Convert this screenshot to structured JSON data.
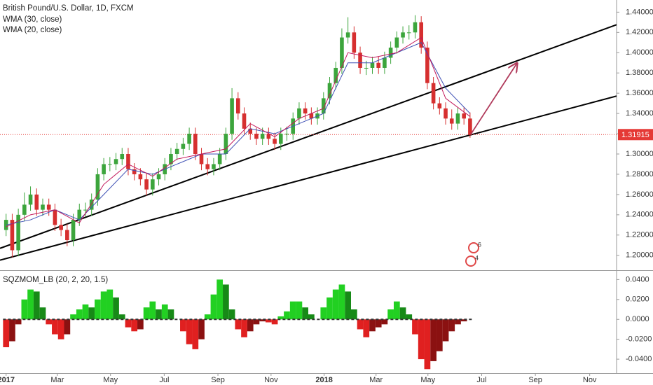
{
  "chart_data": [
    {
      "type": "candlestick",
      "title": "British Pound/U.S. Dollar, 1D, FXCM",
      "xlim": [
        -1,
        100
      ],
      "xticks": [
        {
          "value": 0,
          "label": "2017"
        },
        {
          "value": 8.4,
          "label": "Mar"
        },
        {
          "value": 17.1,
          "label": "May"
        },
        {
          "value": 25.9,
          "label": "Jul"
        },
        {
          "value": 34.7,
          "label": "Sep"
        },
        {
          "value": 43.4,
          "label": "Nov"
        },
        {
          "value": 52.1,
          "label": "2018"
        },
        {
          "value": 60.6,
          "label": "Mar"
        },
        {
          "value": 69.1,
          "label": "May"
        },
        {
          "value": 77.9,
          "label": "Jul"
        },
        {
          "value": 86.7,
          "label": "Sep"
        },
        {
          "value": 95.6,
          "label": "Nov"
        }
      ],
      "ylim": [
        1.186,
        1.452
      ],
      "yticks": [
        {
          "value": 1.2,
          "label": "1.20000"
        },
        {
          "value": 1.22,
          "label": "1.22000"
        },
        {
          "value": 1.24,
          "label": "1.24000"
        },
        {
          "value": 1.26,
          "label": "1.26000"
        },
        {
          "value": 1.28,
          "label": "1.28000"
        },
        {
          "value": 1.3,
          "label": "1.30000"
        },
        {
          "value": 1.32,
          "label": "1.32000"
        },
        {
          "value": 1.34,
          "label": "1.34000"
        },
        {
          "value": 1.36,
          "label": "1.36000"
        },
        {
          "value": 1.38,
          "label": "1.38000"
        },
        {
          "value": 1.4,
          "label": "1.40000"
        },
        {
          "value": 1.42,
          "label": "1.42000"
        },
        {
          "value": 1.44,
          "label": "1.44000"
        }
      ],
      "grid": false,
      "up_color": "#3ca53c",
      "down_color": "#d62f2f",
      "x": [
        0,
        1,
        2,
        3,
        4,
        5,
        6,
        7,
        8,
        9,
        10,
        11,
        12,
        13,
        14,
        15,
        16,
        17,
        18,
        19,
        20,
        21,
        22,
        23,
        24,
        25,
        26,
        27,
        28,
        29,
        30,
        31,
        32,
        33,
        34,
        35,
        36,
        37,
        38,
        39,
        40,
        41,
        42,
        43,
        44,
        45,
        46,
        47,
        48,
        49,
        50,
        51,
        52,
        53,
        54,
        55,
        56,
        57,
        58,
        59,
        60,
        61,
        62,
        63,
        64,
        65,
        66,
        67,
        68,
        69,
        70,
        71,
        72,
        73,
        74,
        75,
        76
      ],
      "open": [
        1.225,
        1.235,
        1.205,
        1.24,
        1.25,
        1.26,
        1.245,
        1.25,
        1.245,
        1.23,
        1.225,
        1.215,
        1.235,
        1.245,
        1.245,
        1.255,
        1.28,
        1.29,
        1.29,
        1.295,
        1.3,
        1.285,
        1.28,
        1.275,
        1.265,
        1.275,
        1.28,
        1.29,
        1.3,
        1.305,
        1.31,
        1.32,
        1.3,
        1.29,
        1.285,
        1.29,
        1.3,
        1.32,
        1.355,
        1.34,
        1.325,
        1.32,
        1.315,
        1.32,
        1.315,
        1.31,
        1.32,
        1.32,
        1.335,
        1.345,
        1.34,
        1.335,
        1.34,
        1.355,
        1.37,
        1.385,
        1.415,
        1.42,
        1.4,
        1.385,
        1.385,
        1.39,
        1.385,
        1.395,
        1.405,
        1.415,
        1.42,
        1.42,
        1.43,
        1.405,
        1.37,
        1.35,
        1.345,
        1.335,
        1.33,
        1.34,
        1.335
      ],
      "high": [
        1.241,
        1.241,
        1.246,
        1.262,
        1.268,
        1.266,
        1.256,
        1.256,
        1.251,
        1.236,
        1.231,
        1.241,
        1.251,
        1.252,
        1.261,
        1.286,
        1.296,
        1.297,
        1.301,
        1.306,
        1.306,
        1.291,
        1.286,
        1.281,
        1.281,
        1.286,
        1.296,
        1.306,
        1.311,
        1.316,
        1.326,
        1.326,
        1.306,
        1.296,
        1.296,
        1.306,
        1.326,
        1.365,
        1.361,
        1.346,
        1.331,
        1.326,
        1.326,
        1.326,
        1.321,
        1.326,
        1.327,
        1.341,
        1.351,
        1.351,
        1.346,
        1.346,
        1.361,
        1.376,
        1.391,
        1.424,
        1.435,
        1.426,
        1.406,
        1.392,
        1.396,
        1.396,
        1.401,
        1.411,
        1.421,
        1.426,
        1.427,
        1.437,
        1.436,
        1.411,
        1.376,
        1.356,
        1.351,
        1.344,
        1.346,
        1.346,
        1.341
      ],
      "low": [
        1.219,
        1.198,
        1.199,
        1.234,
        1.244,
        1.239,
        1.239,
        1.239,
        1.224,
        1.219,
        1.209,
        1.209,
        1.229,
        1.238,
        1.239,
        1.249,
        1.274,
        1.283,
        1.284,
        1.289,
        1.279,
        1.274,
        1.269,
        1.259,
        1.259,
        1.269,
        1.274,
        1.284,
        1.294,
        1.299,
        1.304,
        1.294,
        1.284,
        1.279,
        1.279,
        1.284,
        1.294,
        1.314,
        1.334,
        1.319,
        1.314,
        1.309,
        1.309,
        1.309,
        1.304,
        1.304,
        1.313,
        1.314,
        1.329,
        1.334,
        1.329,
        1.329,
        1.334,
        1.349,
        1.364,
        1.379,
        1.409,
        1.394,
        1.379,
        1.378,
        1.379,
        1.379,
        1.379,
        1.389,
        1.399,
        1.409,
        1.413,
        1.414,
        1.399,
        1.364,
        1.344,
        1.339,
        1.329,
        1.324,
        1.324,
        1.329,
        1.316
      ],
      "close": [
        1.235,
        1.205,
        1.24,
        1.25,
        1.26,
        1.245,
        1.25,
        1.245,
        1.23,
        1.225,
        1.215,
        1.235,
        1.245,
        1.245,
        1.255,
        1.28,
        1.29,
        1.29,
        1.295,
        1.3,
        1.285,
        1.28,
        1.275,
        1.265,
        1.275,
        1.28,
        1.29,
        1.3,
        1.305,
        1.31,
        1.32,
        1.3,
        1.29,
        1.285,
        1.29,
        1.3,
        1.32,
        1.355,
        1.34,
        1.325,
        1.32,
        1.315,
        1.32,
        1.315,
        1.31,
        1.32,
        1.32,
        1.335,
        1.345,
        1.34,
        1.335,
        1.34,
        1.355,
        1.37,
        1.385,
        1.415,
        1.42,
        1.4,
        1.385,
        1.385,
        1.39,
        1.385,
        1.395,
        1.405,
        1.415,
        1.42,
        1.42,
        1.43,
        1.405,
        1.37,
        1.35,
        1.345,
        1.335,
        1.33,
        1.34,
        1.335,
        1.319
      ],
      "series": [
        {
          "name": "WMA (30, close)",
          "color": "#3f51b5",
          "x": [
            0,
            4,
            8,
            12,
            16,
            20,
            24,
            28,
            32,
            36,
            40,
            44,
            48,
            52,
            56,
            60,
            64,
            68,
            72,
            76
          ],
          "values": [
            1.23,
            1.235,
            1.245,
            1.235,
            1.26,
            1.285,
            1.28,
            1.29,
            1.3,
            1.3,
            1.325,
            1.32,
            1.33,
            1.34,
            1.39,
            1.39,
            1.4,
            1.41,
            1.365,
            1.34
          ]
        },
        {
          "name": "WMA (20, close)",
          "color": "#c2185b",
          "x": [
            0,
            4,
            8,
            12,
            16,
            20,
            24,
            28,
            32,
            36,
            40,
            44,
            48,
            52,
            56,
            60,
            64,
            68,
            72,
            76
          ],
          "values": [
            1.228,
            1.24,
            1.245,
            1.232,
            1.27,
            1.29,
            1.278,
            1.295,
            1.3,
            1.305,
            1.33,
            1.317,
            1.335,
            1.345,
            1.4,
            1.395,
            1.4,
            1.415,
            1.355,
            1.337
          ]
        }
      ],
      "trendlines": [
        {
          "x": [
            -1,
            100
          ],
          "y": [
            1.2069,
            1.4276
          ],
          "color": "#000000"
        },
        {
          "x": [
            -1,
            100
          ],
          "y": [
            1.1952,
            1.3572
          ],
          "color": "#000000"
        }
      ],
      "arrow": {
        "x": [
          76.1,
          83.7
        ],
        "y": [
          1.3193,
          1.3897
        ],
        "color": "#b03a5b"
      },
      "last_price": {
        "value": 1.31915,
        "label": "1.31915",
        "color": "#e53935"
      },
      "event_badges": [
        6,
        4
      ]
    },
    {
      "type": "bar",
      "title": "SQZMOM_LB (20, 2, 20, 1.5)",
      "xlim": [
        -1,
        100
      ],
      "ylim": [
        -0.054,
        0.048
      ],
      "yticks": [
        {
          "value": 0.04,
          "label": "0.0400"
        },
        {
          "value": 0.02,
          "label": "0.0200"
        },
        {
          "value": 0,
          "label": "0.0000"
        },
        {
          "value": -0.02,
          "label": "-0.0200"
        },
        {
          "value": -0.04,
          "label": "-0.0400"
        }
      ],
      "colors": {
        "pos_rising": "#22d022",
        "pos_falling": "#178a17",
        "neg_falling": "#e02020",
        "neg_rising": "#8b1111"
      },
      "x": [
        0,
        1,
        2,
        3,
        4,
        5,
        6,
        7,
        8,
        9,
        10,
        11,
        12,
        13,
        14,
        15,
        16,
        17,
        18,
        19,
        20,
        21,
        22,
        23,
        24,
        25,
        26,
        27,
        28,
        29,
        30,
        31,
        32,
        33,
        34,
        35,
        36,
        37,
        38,
        39,
        40,
        41,
        42,
        43,
        44,
        45,
        46,
        47,
        48,
        49,
        50,
        51,
        52,
        53,
        54,
        55,
        56,
        57,
        58,
        59,
        60,
        61,
        62,
        63,
        64,
        65,
        66,
        67,
        68,
        69,
        70,
        71,
        72,
        73,
        74,
        75,
        76
      ],
      "values": [
        -0.028,
        -0.022,
        -0.005,
        0.02,
        0.03,
        0.028,
        0.012,
        -0.005,
        -0.015,
        -0.02,
        -0.015,
        0.005,
        0.01,
        0.015,
        0.012,
        0.02,
        0.028,
        0.03,
        0.022,
        0.005,
        -0.008,
        -0.012,
        -0.01,
        0.012,
        0.018,
        0.01,
        0.015,
        0.01,
        0,
        -0.012,
        -0.025,
        -0.03,
        -0.02,
        0.005,
        0.025,
        0.04,
        0.035,
        0.01,
        -0.01,
        -0.018,
        -0.012,
        -0.005,
        -0.002,
        -0.003,
        -0.005,
        0.003,
        0.008,
        0.018,
        0.018,
        0.012,
        0.005,
        0,
        0.012,
        0.022,
        0.03,
        0.035,
        0.028,
        0.01,
        -0.01,
        -0.018,
        -0.012,
        -0.008,
        -0.005,
        0.01,
        0.018,
        0.012,
        0.005,
        -0.015,
        -0.04,
        -0.05,
        -0.042,
        -0.032,
        -0.022,
        -0.012,
        -0.005,
        -0.002,
        0
      ]
    }
  ]
}
